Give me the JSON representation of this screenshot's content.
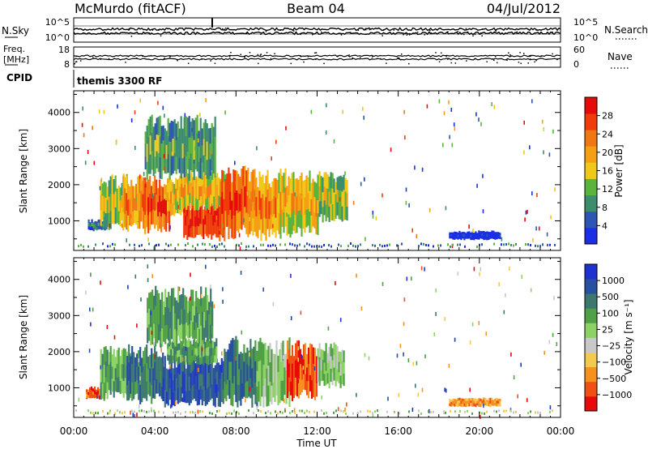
{
  "header": {
    "station": "McMurdo (fitACF)",
    "beam": "Beam 04",
    "date": "04/Jul/2012"
  },
  "top_panels": {
    "nsky_label": "N.Sky",
    "nsearch_label": "N.Search",
    "freq_label_line1": "Freq.",
    "freq_label_line2": "[MHz]",
    "nave_label": "Nave",
    "cpid_label": "CPID",
    "cpid_value": "themis 3300 RF",
    "noise_ticks": [
      "10^5",
      "10^0"
    ],
    "freq_ticks": [
      "18",
      "8"
    ],
    "nave_ticks": [
      "60",
      "0"
    ]
  },
  "colors": {
    "power_scale": [
      "#1a2ee6",
      "#2d55b4",
      "#3c8c6e",
      "#59b33c",
      "#f0c819",
      "#f5a014",
      "#f07814",
      "#f03c0a",
      "#e60a0a"
    ],
    "velocity_scale": [
      "#e60a0a",
      "#f05014",
      "#f5911e",
      "#f5c850",
      "#c8c8c8",
      "#8cd264",
      "#50a046",
      "#3c786e",
      "#2850a0",
      "#1e32d2"
    ]
  },
  "chart_data": [
    {
      "type": "heatmap",
      "name": "power",
      "xlabel": "Time UT",
      "ylabel": "Slant Range [km]",
      "x_tick_labels": [
        "00:00",
        "04:00",
        "08:00",
        "12:00",
        "16:00",
        "20:00",
        "00:00"
      ],
      "xlim": [
        0,
        24
      ],
      "ylim": [
        180,
        4600
      ],
      "y_ticks": [
        1000,
        2000,
        3000,
        4000
      ],
      "colorbar_label": "Power [dB]",
      "colorbar_ticks": [
        "28",
        "24",
        "20",
        "16",
        "12",
        "8",
        "4"
      ],
      "colorbar_range": [
        0,
        32
      ],
      "regions": [
        {
          "t0": 0.7,
          "t1": 1.6,
          "r0": 750,
          "r1": 1000,
          "level": 3
        },
        {
          "t0": 1.3,
          "t1": 2.6,
          "r0": 900,
          "r1": 2100,
          "level": 5
        },
        {
          "t0": 2.4,
          "t1": 3.6,
          "r0": 850,
          "r1": 2050,
          "level": 7
        },
        {
          "t0": 3.4,
          "t1": 4.7,
          "r0": 800,
          "r1": 2100,
          "level": 8
        },
        {
          "t0": 4.6,
          "t1": 5.5,
          "r0": 1200,
          "r1": 2100,
          "level": 6
        },
        {
          "t0": 5.4,
          "t1": 7.4,
          "r0": 550,
          "r1": 1450,
          "level": 9
        },
        {
          "t0": 5.2,
          "t1": 7.5,
          "r0": 1400,
          "r1": 2300,
          "level": 6
        },
        {
          "t0": 7.2,
          "t1": 8.8,
          "r0": 700,
          "r1": 2300,
          "level": 8
        },
        {
          "t0": 8.8,
          "t1": 10.0,
          "r0": 650,
          "r1": 2200,
          "level": 7
        },
        {
          "t0": 10.0,
          "t1": 12.0,
          "r0": 700,
          "r1": 2200,
          "level": 6
        },
        {
          "t0": 12.0,
          "t1": 13.5,
          "r0": 1100,
          "r1": 2200,
          "level": 5
        },
        {
          "t0": 3.5,
          "t1": 7.0,
          "r0": 2300,
          "r1": 3700,
          "level": 4
        },
        {
          "t0": 18.5,
          "t1": 21.0,
          "r0": 500,
          "r1": 700,
          "level": 1
        }
      ]
    },
    {
      "type": "heatmap",
      "name": "velocity",
      "xlabel": "Time UT",
      "ylabel": "Slant Range [km]",
      "x_tick_labels": [
        "00:00",
        "04:00",
        "08:00",
        "12:00",
        "16:00",
        "20:00",
        "00:00"
      ],
      "xlim": [
        0,
        24
      ],
      "ylim": [
        180,
        4600
      ],
      "y_ticks": [
        1000,
        2000,
        3000,
        4000
      ],
      "colorbar_label": "Velocity [m s⁻¹]",
      "colorbar_ticks": [
        "1000",
        "500",
        "100",
        "25",
        "−25",
        "−100",
        "−500",
        "−1000"
      ],
      "colorbar_range": [
        -1000,
        1000
      ],
      "regions": [
        {
          "t0": 0.6,
          "t1": 1.5,
          "r0": 700,
          "r1": 1000,
          "level": 2
        },
        {
          "t0": 1.3,
          "t1": 2.8,
          "r0": 800,
          "r1": 2000,
          "level": 7
        },
        {
          "t0": 2.6,
          "t1": 4.4,
          "r0": 700,
          "r1": 2000,
          "level": 8
        },
        {
          "t0": 4.3,
          "t1": 7.4,
          "r0": 600,
          "r1": 1700,
          "level": 9
        },
        {
          "t0": 4.6,
          "t1": 7.0,
          "r0": 1700,
          "r1": 2300,
          "level": 7
        },
        {
          "t0": 3.6,
          "t1": 6.8,
          "r0": 2300,
          "r1": 3600,
          "level": 7
        },
        {
          "t0": 7.4,
          "t1": 9.0,
          "r0": 650,
          "r1": 2200,
          "level": 8
        },
        {
          "t0": 9.0,
          "t1": 10.6,
          "r0": 650,
          "r1": 2150,
          "level": 6
        },
        {
          "t0": 10.5,
          "t1": 12.0,
          "r0": 800,
          "r1": 2100,
          "level": 2
        },
        {
          "t0": 12.0,
          "t1": 13.3,
          "r0": 1100,
          "r1": 2100,
          "level": 6
        },
        {
          "t0": 18.5,
          "t1": 21.0,
          "r0": 500,
          "r1": 700,
          "level": 3
        }
      ]
    }
  ]
}
